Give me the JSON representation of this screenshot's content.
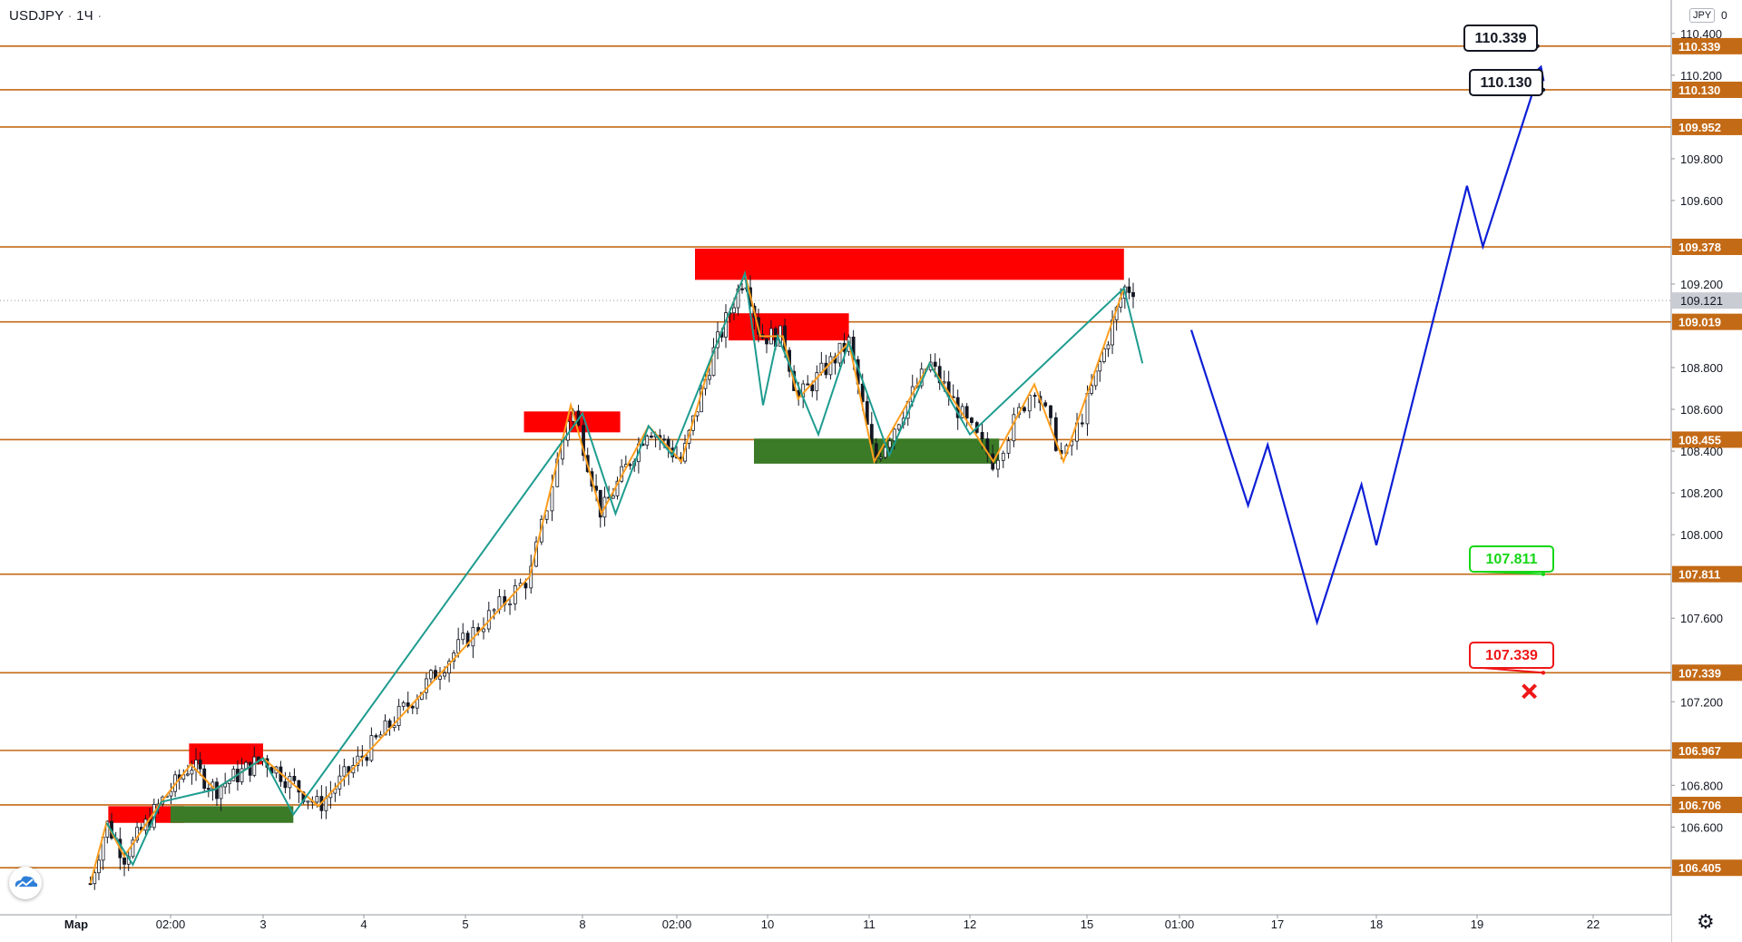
{
  "header": {
    "symbol": "USDJPY",
    "separator": "·",
    "interval": "1Ч",
    "dot": "·"
  },
  "price_scale": {
    "currency_badge": "JPY",
    "mode": "0"
  },
  "chart_data": {
    "type": "candlestick",
    "symbol": "USDJPY",
    "timeframe": "1Ч",
    "ylim": [
      106.18,
      110.56
    ],
    "y_ticks": [
      "106.600",
      "106.800",
      "107.200",
      "107.600",
      "108.000",
      "108.200",
      "108.400",
      "108.600",
      "108.800",
      "109.200",
      "109.600",
      "109.800",
      "110.200",
      "110.400"
    ],
    "x_ticks": [
      {
        "label": "Мар",
        "bold": true,
        "pos": 0
      },
      {
        "label": "02:00",
        "pos": 1
      },
      {
        "label": "3",
        "pos": 2
      },
      {
        "label": "4",
        "pos": 3
      },
      {
        "label": "5",
        "pos": 4
      },
      {
        "label": "8",
        "pos": 5
      },
      {
        "label": "02:00",
        "pos": 6
      },
      {
        "label": "10",
        "pos": 7
      },
      {
        "label": "11",
        "pos": 8
      },
      {
        "label": "12",
        "pos": 9
      },
      {
        "label": "15",
        "pos": 10
      },
      {
        "label": "01:00",
        "pos": 11
      },
      {
        "label": "17",
        "pos": 12
      },
      {
        "label": "18",
        "pos": 13
      },
      {
        "label": "19",
        "pos": 14
      },
      {
        "label": "22",
        "pos": 15
      }
    ],
    "current_price": "109.121",
    "horizontal_levels": [
      {
        "label": "110.339",
        "price": 110.339
      },
      {
        "label": "110.130",
        "price": 110.13
      },
      {
        "label": "109.952",
        "price": 109.952
      },
      {
        "label": "109.378",
        "price": 109.378
      },
      {
        "label": "109.019",
        "price": 109.019
      },
      {
        "label": "108.455",
        "price": 108.455
      },
      {
        "label": "107.811",
        "price": 107.811
      },
      {
        "label": "107.339",
        "price": 107.339
      },
      {
        "label": "106.967",
        "price": 106.967
      },
      {
        "label": "106.706",
        "price": 106.706
      },
      {
        "label": "106.405",
        "price": 106.405
      }
    ],
    "zones": [
      {
        "kind": "supply",
        "t0": 0.34,
        "t1": 1.15,
        "p0": 106.62,
        "p1": 106.7
      },
      {
        "kind": "supply",
        "t0": 1.2,
        "t1": 2.0,
        "p0": 106.9,
        "p1": 107.0
      },
      {
        "kind": "demand",
        "t0": 1.0,
        "t1": 2.3,
        "p0": 106.62,
        "p1": 106.7
      },
      {
        "kind": "supply",
        "t0": 4.5,
        "t1": 5.4,
        "p0": 108.49,
        "p1": 108.59
      },
      {
        "kind": "supply",
        "t0": 6.2,
        "t1": 10.4,
        "p0": 109.22,
        "p1": 109.37
      },
      {
        "kind": "supply",
        "t0": 6.57,
        "t1": 7.8,
        "p0": 108.93,
        "p1": 109.06
      },
      {
        "kind": "demand",
        "t0": 6.85,
        "t1": 9.25,
        "p0": 108.34,
        "p1": 108.46
      }
    ],
    "zigzag_up": [
      [
        0.15,
        106.33
      ],
      [
        0.32,
        106.62
      ],
      [
        0.51,
        106.46
      ],
      [
        0.9,
        106.72
      ],
      [
        1.22,
        106.9
      ],
      [
        1.48,
        106.78
      ],
      [
        2.0,
        106.93
      ],
      [
        2.55,
        106.7
      ],
      [
        4.55,
        107.8
      ],
      [
        4.9,
        108.62
      ],
      [
        5.2,
        108.1
      ],
      [
        5.7,
        108.52
      ],
      [
        6.05,
        108.35
      ],
      [
        6.4,
        108.87
      ],
      [
        6.75,
        109.25
      ],
      [
        6.92,
        108.95
      ],
      [
        7.15,
        108.95
      ],
      [
        7.3,
        108.65
      ],
      [
        7.8,
        108.92
      ],
      [
        8.05,
        108.35
      ],
      [
        8.6,
        108.82
      ],
      [
        9.2,
        108.35
      ],
      [
        9.55,
        108.72
      ],
      [
        9.8,
        108.35
      ],
      [
        10.4,
        109.18
      ]
    ],
    "zigzag_down": [
      [
        0.32,
        106.62
      ],
      [
        0.6,
        106.42
      ],
      [
        0.9,
        106.72
      ],
      [
        1.48,
        106.78
      ],
      [
        2.0,
        106.93
      ],
      [
        2.3,
        106.66
      ],
      [
        5.0,
        108.58
      ],
      [
        5.35,
        108.1
      ],
      [
        5.7,
        108.52
      ],
      [
        5.95,
        108.38
      ],
      [
        6.75,
        109.25
      ],
      [
        6.95,
        108.62
      ],
      [
        7.1,
        108.95
      ],
      [
        7.5,
        108.48
      ],
      [
        7.8,
        108.92
      ],
      [
        8.2,
        108.38
      ],
      [
        8.6,
        108.82
      ],
      [
        9.0,
        108.48
      ],
      [
        10.4,
        109.18
      ],
      [
        10.6,
        108.82
      ]
    ],
    "forecast_path": [
      [
        11.12,
        108.98
      ],
      [
        11.7,
        108.14
      ],
      [
        11.9,
        108.43
      ],
      [
        12.4,
        107.58
      ],
      [
        12.85,
        108.24
      ],
      [
        13.0,
        107.95
      ],
      [
        13.9,
        109.67
      ],
      [
        14.05,
        109.38
      ],
      [
        14.55,
        110.24
      ]
    ],
    "target_labels": [
      {
        "text": "110.339",
        "kind": "target"
      },
      {
        "text": "110.130",
        "kind": "target"
      },
      {
        "text": "107.811",
        "kind": "entry"
      },
      {
        "text": "107.339",
        "kind": "stop"
      }
    ],
    "colors": {
      "level": "#c36a16",
      "supply": "#ff0000",
      "demand": "#3b7a26",
      "zigzag_up": "#ff9e1e",
      "zigzag_down": "#1e9c8f",
      "forecast": "#0d1fd6",
      "candle_up": "#131722",
      "candle_down": "#131722",
      "entry": "#17d617",
      "stop": "#ef1717",
      "current_price_bg": "#c9ccd2",
      "level_label_bg": "#c36a16"
    }
  }
}
